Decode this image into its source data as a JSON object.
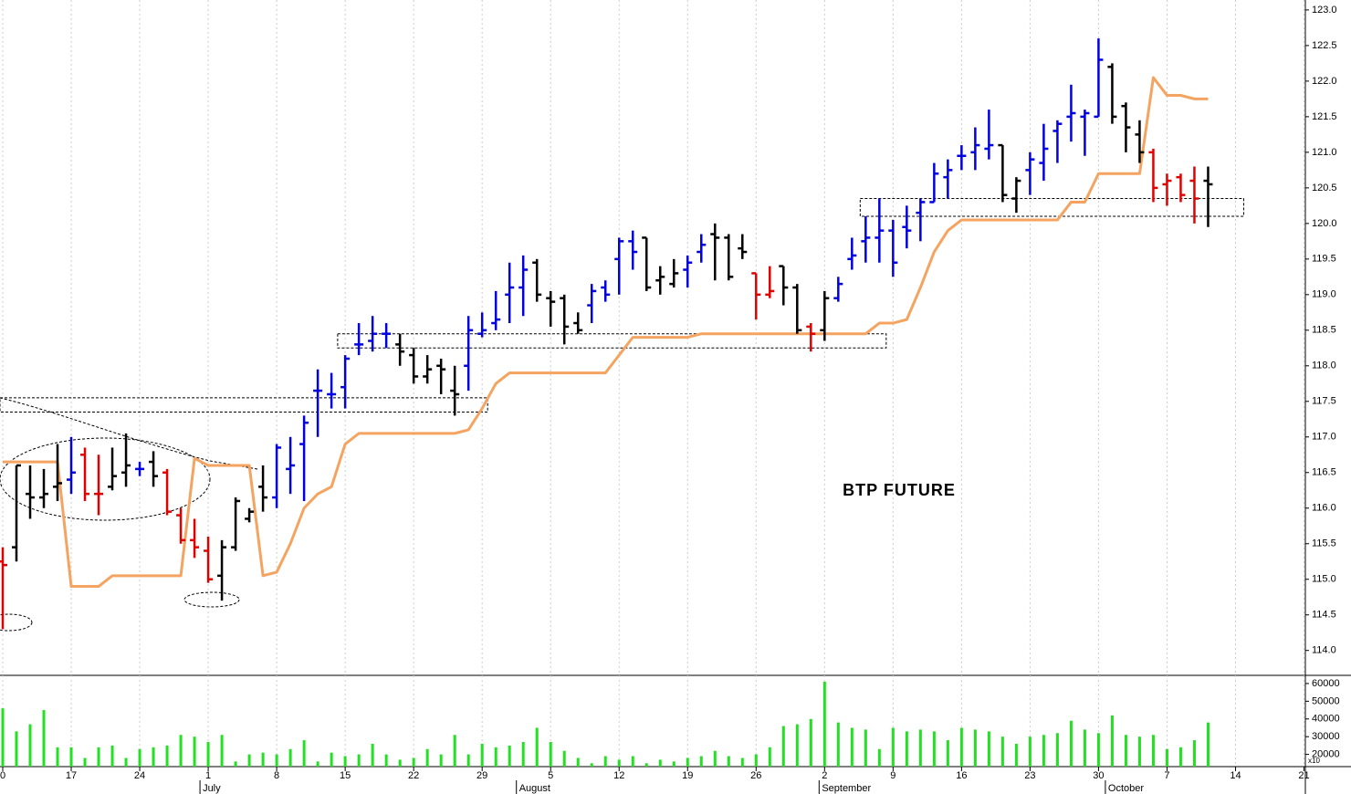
{
  "chart_data": {
    "type": "ohlc",
    "annotation": "BTP FUTURE",
    "grid": true,
    "xlim": [
      -0.2,
      95.1
    ],
    "xticks": [
      {
        "value": 0,
        "label": "0"
      },
      {
        "value": 5,
        "label": "17"
      },
      {
        "value": 10,
        "label": "24"
      },
      {
        "value": 15,
        "label": "1"
      },
      {
        "value": 20,
        "label": "8"
      },
      {
        "value": 25,
        "label": "15"
      },
      {
        "value": 30,
        "label": "22"
      },
      {
        "value": 35,
        "label": "29"
      },
      {
        "value": 40,
        "label": "5"
      },
      {
        "value": 45,
        "label": "12"
      },
      {
        "value": 50,
        "label": "19"
      },
      {
        "value": 55,
        "label": "26"
      },
      {
        "value": 60,
        "label": "2"
      },
      {
        "value": 65,
        "label": "9"
      },
      {
        "value": 70,
        "label": "16"
      },
      {
        "value": 75,
        "label": "23"
      },
      {
        "value": 80,
        "label": "30"
      },
      {
        "value": 85,
        "label": "7"
      },
      {
        "value": 90,
        "label": "14"
      },
      {
        "value": 95,
        "label": "21"
      }
    ],
    "month_labels": [
      {
        "value": 14.4,
        "label": "July"
      },
      {
        "value": 37.5,
        "label": "August"
      },
      {
        "value": 59.6,
        "label": "September"
      },
      {
        "value": 80.5,
        "label": "October"
      }
    ],
    "ylim": [
      113.65,
      123.14
    ],
    "yticks": [
      {
        "value": 114,
        "label": "114.0"
      },
      {
        "value": 114.5,
        "label": "114.5"
      },
      {
        "value": 115,
        "label": "115.0"
      },
      {
        "value": 115.5,
        "label": "115.5"
      },
      {
        "value": 116,
        "label": "116.0"
      },
      {
        "value": 116.5,
        "label": "116.5"
      },
      {
        "value": 117,
        "label": "117.0"
      },
      {
        "value": 117.5,
        "label": "117.5"
      },
      {
        "value": 118,
        "label": "118.0"
      },
      {
        "value": 118.5,
        "label": "118.5"
      },
      {
        "value": 119,
        "label": "119.0"
      },
      {
        "value": 119.5,
        "label": "119.5"
      },
      {
        "value": 120,
        "label": "120.0"
      },
      {
        "value": 120.5,
        "label": "120.5"
      },
      {
        "value": 121,
        "label": "121.0"
      },
      {
        "value": 121.5,
        "label": "121.5"
      },
      {
        "value": 122,
        "label": "122.0"
      },
      {
        "value": 122.5,
        "label": "122.5"
      },
      {
        "value": 123,
        "label": "123.0"
      }
    ],
    "bars": {
      "open": [
        115.25,
        115.45,
        116.2,
        116.15,
        116.3,
        116.4,
        116.75,
        116.2,
        116.3,
        116.5,
        116.55,
        116.65,
        116.5,
        115.9,
        115.55,
        115.4,
        115.05,
        115.45,
        115.85,
        116.3,
        116.15,
        116.55,
        116.9,
        117.65,
        117.6,
        117.7,
        118.3,
        118.35,
        118.45,
        118.3,
        118.15,
        117.85,
        118.0,
        117.65,
        118.0,
        118.45,
        118.6,
        119.0,
        119.1,
        119.45,
        118.95,
        118.95,
        118.6,
        118.85,
        119.1,
        119.5,
        119.75,
        119.8,
        119.2,
        119.15,
        119.35,
        119.6,
        119.85,
        119.8,
        119.65,
        119.3,
        119.0,
        119.4,
        119.1,
        118.55,
        118.5,
        118.95,
        119.5,
        119.75,
        119.8,
        119.9,
        119.95,
        120.15,
        120.3,
        120.65,
        120.95,
        121.0,
        121.05,
        121.1,
        120.35,
        120.75,
        120.85,
        121.3,
        121.5,
        121.5,
        121.5,
        122.2,
        121.65,
        121.25,
        121.0,
        120.55,
        120.65,
        120.6,
        120.6
      ],
      "high": [
        115.45,
        116.6,
        116.6,
        116.55,
        116.9,
        117.0,
        116.85,
        116.75,
        116.85,
        117.05,
        116.65,
        116.8,
        116.55,
        116.0,
        115.85,
        115.6,
        115.55,
        116.15,
        116.0,
        116.6,
        116.9,
        117.0,
        117.3,
        117.95,
        117.9,
        118.15,
        118.6,
        118.7,
        118.6,
        118.45,
        118.25,
        118.15,
        118.1,
        118.0,
        118.7,
        118.75,
        119.05,
        119.45,
        119.55,
        119.5,
        119.05,
        119.0,
        118.75,
        119.15,
        119.2,
        119.8,
        119.9,
        119.8,
        119.4,
        119.5,
        119.55,
        119.85,
        120.0,
        119.85,
        119.85,
        119.3,
        119.4,
        119.4,
        119.15,
        118.6,
        119.05,
        119.25,
        119.8,
        120.1,
        120.35,
        120.05,
        120.25,
        120.35,
        120.85,
        120.9,
        121.1,
        121.35,
        121.6,
        121.1,
        120.65,
        121.0,
        121.4,
        121.45,
        121.95,
        121.6,
        122.6,
        122.25,
        121.7,
        121.45,
        121.05,
        120.7,
        120.7,
        120.8,
        120.8
      ],
      "low": [
        114.3,
        115.25,
        115.85,
        116.0,
        116.1,
        116.2,
        116.1,
        115.9,
        116.25,
        116.3,
        116.45,
        116.3,
        115.9,
        115.5,
        115.3,
        114.95,
        114.7,
        115.4,
        115.8,
        115.95,
        116.0,
        116.2,
        116.1,
        117.0,
        117.4,
        117.4,
        118.15,
        118.2,
        118.25,
        118.0,
        117.75,
        117.75,
        117.6,
        117.3,
        117.65,
        118.4,
        118.5,
        118.6,
        118.7,
        118.9,
        118.55,
        118.3,
        118.45,
        118.6,
        118.9,
        119.0,
        119.35,
        119.05,
        119.0,
        119.1,
        119.1,
        119.45,
        119.2,
        119.2,
        119.5,
        118.65,
        118.95,
        118.85,
        118.45,
        118.2,
        118.35,
        118.9,
        119.35,
        119.45,
        119.45,
        119.25,
        119.65,
        119.75,
        120.3,
        120.35,
        120.75,
        120.75,
        120.9,
        120.3,
        120.15,
        120.4,
        120.6,
        120.85,
        121.15,
        120.95,
        121.5,
        121.4,
        121.0,
        120.85,
        120.3,
        120.25,
        120.3,
        120.0,
        119.95
      ],
      "close": [
        115.2,
        116.6,
        116.15,
        116.2,
        116.35,
        116.5,
        116.2,
        116.2,
        116.45,
        116.6,
        116.55,
        116.45,
        115.95,
        115.55,
        115.45,
        115.0,
        115.45,
        116.1,
        115.95,
        116.15,
        116.85,
        116.6,
        117.2,
        117.65,
        117.6,
        118.1,
        118.3,
        118.45,
        118.45,
        118.2,
        117.85,
        117.95,
        117.95,
        117.6,
        118.5,
        118.5,
        118.65,
        119.1,
        119.35,
        119.0,
        118.9,
        118.55,
        118.5,
        119.05,
        119.0,
        119.75,
        119.6,
        119.1,
        119.25,
        119.3,
        119.45,
        119.7,
        119.8,
        119.25,
        119.6,
        119.0,
        119.05,
        119.1,
        118.5,
        118.45,
        118.95,
        119.15,
        119.55,
        119.8,
        119.9,
        119.45,
        119.9,
        120.3,
        120.7,
        120.75,
        120.95,
        121.1,
        121.1,
        120.4,
        120.6,
        120.9,
        121.05,
        121.4,
        121.55,
        121.55,
        122.3,
        121.5,
        121.35,
        121.0,
        120.5,
        120.6,
        120.4,
        120.35,
        120.55
      ],
      "colors": [
        "#e00000",
        "#000000",
        "#000000",
        "#000000",
        "#000000",
        "#0000e0",
        "#e00000",
        "#e00000",
        "#000000",
        "#000000",
        "#0000e0",
        "#000000",
        "#e00000",
        "#e00000",
        "#e00000",
        "#e00000",
        "#000000",
        "#000000",
        "#000000",
        "#000000",
        "#0000e0",
        "#0000e0",
        "#0000e0",
        "#0000e0",
        "#0000e0",
        "#0000e0",
        "#0000e0",
        "#0000e0",
        "#0000e0",
        "#000000",
        "#000000",
        "#000000",
        "#000000",
        "#000000",
        "#0000e0",
        "#0000e0",
        "#0000e0",
        "#0000e0",
        "#0000e0",
        "#000000",
        "#000000",
        "#000000",
        "#000000",
        "#0000e0",
        "#0000e0",
        "#0000e0",
        "#0000e0",
        "#000000",
        "#000000",
        "#000000",
        "#0000e0",
        "#0000e0",
        "#000000",
        "#000000",
        "#000000",
        "#e00000",
        "#e00000",
        "#000000",
        "#000000",
        "#e00000",
        "#000000",
        "#0000e0",
        "#0000e0",
        "#0000e0",
        "#0000e0",
        "#0000e0",
        "#0000e0",
        "#0000e0",
        "#0000e0",
        "#0000e0",
        "#0000e0",
        "#0000e0",
        "#0000e0",
        "#000000",
        "#000000",
        "#0000e0",
        "#0000e0",
        "#0000e0",
        "#0000e0",
        "#0000e0",
        "#0000e0",
        "#000000",
        "#000000",
        "#000000",
        "#e00000",
        "#e00000",
        "#e00000",
        "#e00000",
        "#000000"
      ]
    },
    "line": {
      "color": "#f4a460",
      "values": [
        116.65,
        116.65,
        116.65,
        116.65,
        116.65,
        114.9,
        114.9,
        114.9,
        115.05,
        115.05,
        115.05,
        115.05,
        115.05,
        115.05,
        116.7,
        116.6,
        116.6,
        116.6,
        116.6,
        115.05,
        115.1,
        115.5,
        116.0,
        116.2,
        116.3,
        116.9,
        117.05,
        117.05,
        117.05,
        117.05,
        117.05,
        117.05,
        117.05,
        117.05,
        117.1,
        117.4,
        117.75,
        117.9,
        117.9,
        117.9,
        117.9,
        117.9,
        117.9,
        117.9,
        117.9,
        118.15,
        118.4,
        118.4,
        118.4,
        118.4,
        118.4,
        118.45,
        118.45,
        118.45,
        118.45,
        118.45,
        118.45,
        118.45,
        118.45,
        118.45,
        118.45,
        118.45,
        118.45,
        118.45,
        118.6,
        118.6,
        118.65,
        119.1,
        119.6,
        119.9,
        120.05,
        120.05,
        120.05,
        120.05,
        120.05,
        120.05,
        120.05,
        120.05,
        120.3,
        120.3,
        120.7,
        120.7,
        120.7,
        120.7,
        122.05,
        121.8,
        121.8,
        121.75,
        121.75
      ]
    },
    "zones": [
      {
        "x": [
          -0.2,
          35.4
        ],
        "y": [
          117.35,
          117.55
        ]
      },
      {
        "x": [
          24.45,
          64.5
        ],
        "y": [
          118.25,
          118.45
        ]
      },
      {
        "x": [
          62.6,
          90.6
        ],
        "y": [
          120.1,
          120.35
        ]
      }
    ],
    "volume": {
      "color": "#22e022",
      "unit_label": "x10",
      "ylim": [
        13100,
        64600
      ],
      "yticks": [
        20000,
        30000,
        40000,
        50000,
        60000
      ],
      "values": [
        46000,
        33000,
        37000,
        45000,
        24000,
        24000,
        18000,
        24000,
        25000,
        18000,
        23000,
        24000,
        25000,
        31000,
        30000,
        27000,
        31000,
        16000,
        20000,
        21000,
        20000,
        23000,
        28000,
        16000,
        21000,
        19000,
        20000,
        26000,
        20000,
        17000,
        18000,
        23000,
        20000,
        31000,
        20000,
        26000,
        24000,
        25000,
        27000,
        35000,
        27000,
        22000,
        18000,
        15000,
        19000,
        17000,
        19000,
        15000,
        17000,
        16000,
        18000,
        19000,
        22000,
        19000,
        18000,
        20000,
        24000,
        36000,
        37000,
        40000,
        61000,
        38000,
        35000,
        34000,
        23000,
        35000,
        33000,
        34000,
        33000,
        28000,
        35000,
        34000,
        33000,
        30000,
        26000,
        30000,
        31000,
        32000,
        39000,
        34000,
        32000,
        42000,
        31000,
        30000,
        31000,
        23000,
        24000,
        28000,
        38000
      ]
    }
  }
}
